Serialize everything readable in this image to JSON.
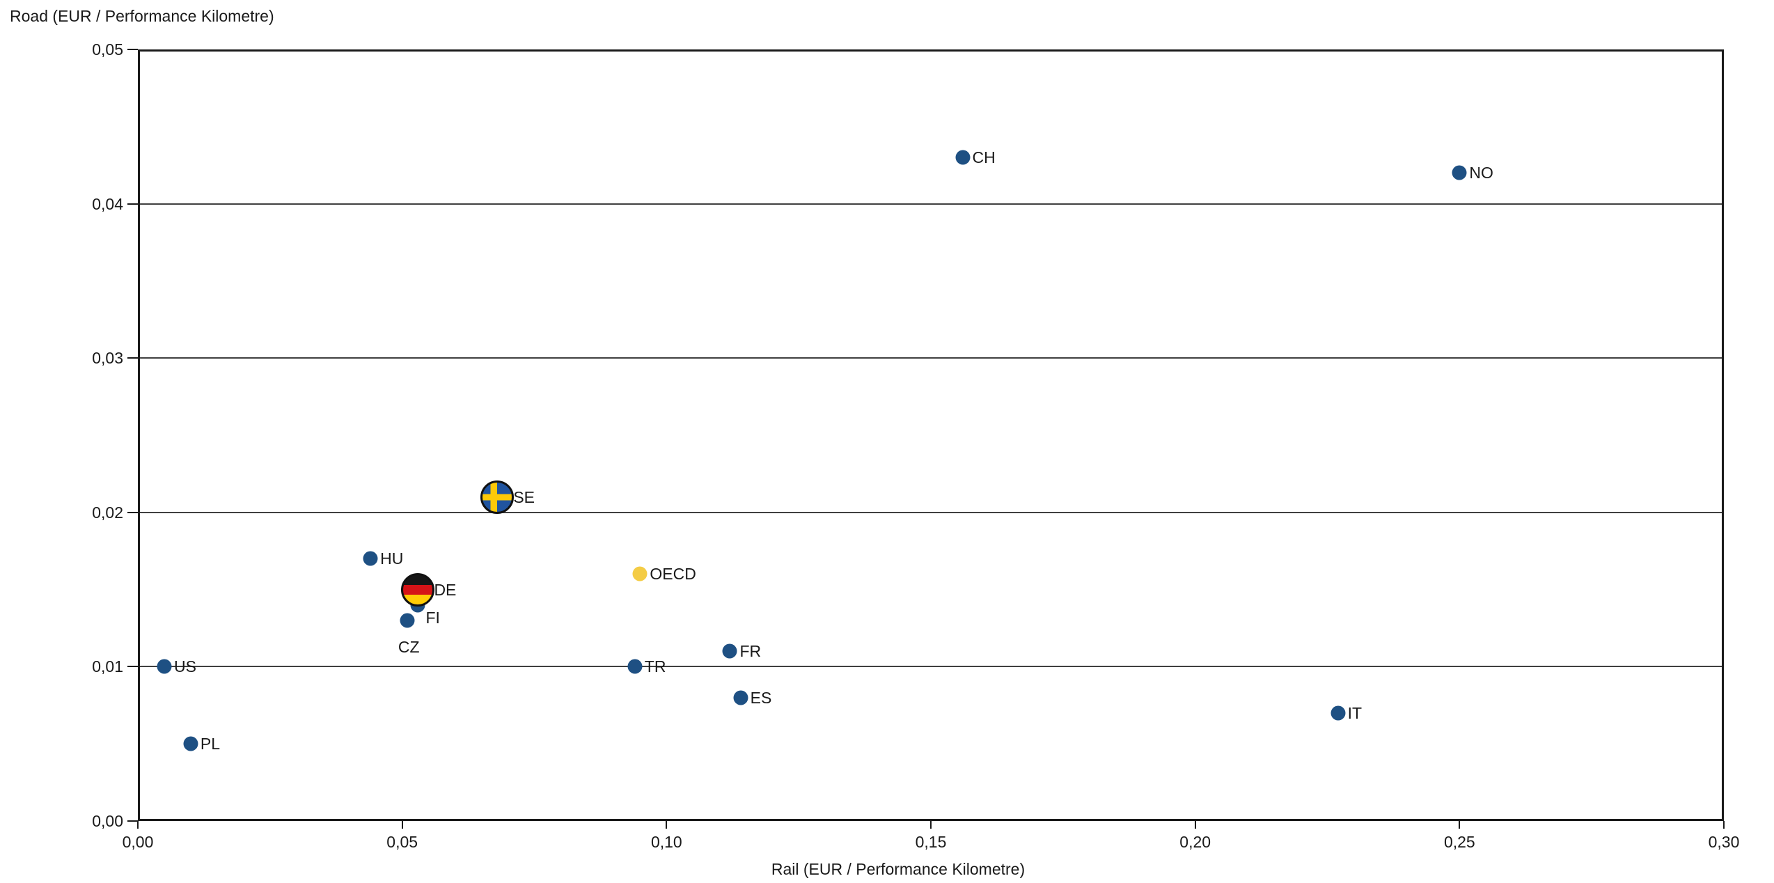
{
  "colors": {
    "point_blue": "#1E5083",
    "point_yellow": "#F4CC45",
    "grid_line": "#404040",
    "axis_frame": "#1A1A1A",
    "text": "#1A1A1A",
    "sweden_flag_blue": "#20549F",
    "sweden_flag_yellow": "#FDC908",
    "germany_flag_black": "#161616",
    "germany_flag_red": "#D51317",
    "germany_flag_gold": "#FFCC05"
  },
  "chart_data": {
    "type": "scatter",
    "title": "",
    "xlabel": "Rail (EUR / Performance Kilometre)",
    "ylabel": "Road (EUR / Performance Kilometre)",
    "xlim": [
      0,
      0.3
    ],
    "ylim": [
      0,
      0.05
    ],
    "grid": "horizontal-only",
    "legend": "none",
    "decimal_separator": ",",
    "x_ticks": [
      {
        "value": 0.0,
        "label": "0,00"
      },
      {
        "value": 0.05,
        "label": "0,05"
      },
      {
        "value": 0.1,
        "label": "0,10"
      },
      {
        "value": 0.15,
        "label": "0,15"
      },
      {
        "value": 0.2,
        "label": "0,20"
      },
      {
        "value": 0.25,
        "label": "0,25"
      },
      {
        "value": 0.3,
        "label": "0,30"
      }
    ],
    "y_ticks": [
      {
        "value": 0.0,
        "label": "0,00"
      },
      {
        "value": 0.01,
        "label": "0,01"
      },
      {
        "value": 0.02,
        "label": "0,02"
      },
      {
        "value": 0.03,
        "label": "0,03"
      },
      {
        "value": 0.04,
        "label": "0,04"
      },
      {
        "value": 0.05,
        "label": "0,05"
      }
    ],
    "points": [
      {
        "label": "CH",
        "x": 0.156,
        "y": 0.043,
        "marker": "dot-blue",
        "label_placement": "right"
      },
      {
        "label": "NO",
        "x": 0.25,
        "y": 0.042,
        "marker": "dot-blue",
        "label_placement": "right"
      },
      {
        "label": "SE",
        "x": 0.068,
        "y": 0.021,
        "marker": "flag-sweden",
        "label_placement": "right"
      },
      {
        "label": "HU",
        "x": 0.044,
        "y": 0.017,
        "marker": "dot-blue",
        "label_placement": "right"
      },
      {
        "label": "OECD",
        "x": 0.095,
        "y": 0.016,
        "marker": "dot-yellow",
        "label_placement": "right"
      },
      {
        "label": "DE",
        "x": 0.053,
        "y": 0.015,
        "marker": "flag-germany",
        "label_placement": "right"
      },
      {
        "label": "FI",
        "x": 0.053,
        "y": 0.014,
        "marker": "dot-blue",
        "label_placement": "right-below"
      },
      {
        "label": "CZ",
        "x": 0.051,
        "y": 0.013,
        "marker": "dot-blue",
        "label_placement": "below"
      },
      {
        "label": "FR",
        "x": 0.112,
        "y": 0.011,
        "marker": "dot-blue",
        "label_placement": "right"
      },
      {
        "label": "TR",
        "x": 0.094,
        "y": 0.01,
        "marker": "dot-blue",
        "label_placement": "right"
      },
      {
        "label": "US",
        "x": 0.005,
        "y": 0.01,
        "marker": "dot-blue",
        "label_placement": "right"
      },
      {
        "label": "ES",
        "x": 0.114,
        "y": 0.008,
        "marker": "dot-blue",
        "label_placement": "right"
      },
      {
        "label": "IT",
        "x": 0.227,
        "y": 0.007,
        "marker": "dot-blue",
        "label_placement": "right"
      },
      {
        "label": "PL",
        "x": 0.01,
        "y": 0.005,
        "marker": "dot-blue",
        "label_placement": "right"
      }
    ]
  }
}
